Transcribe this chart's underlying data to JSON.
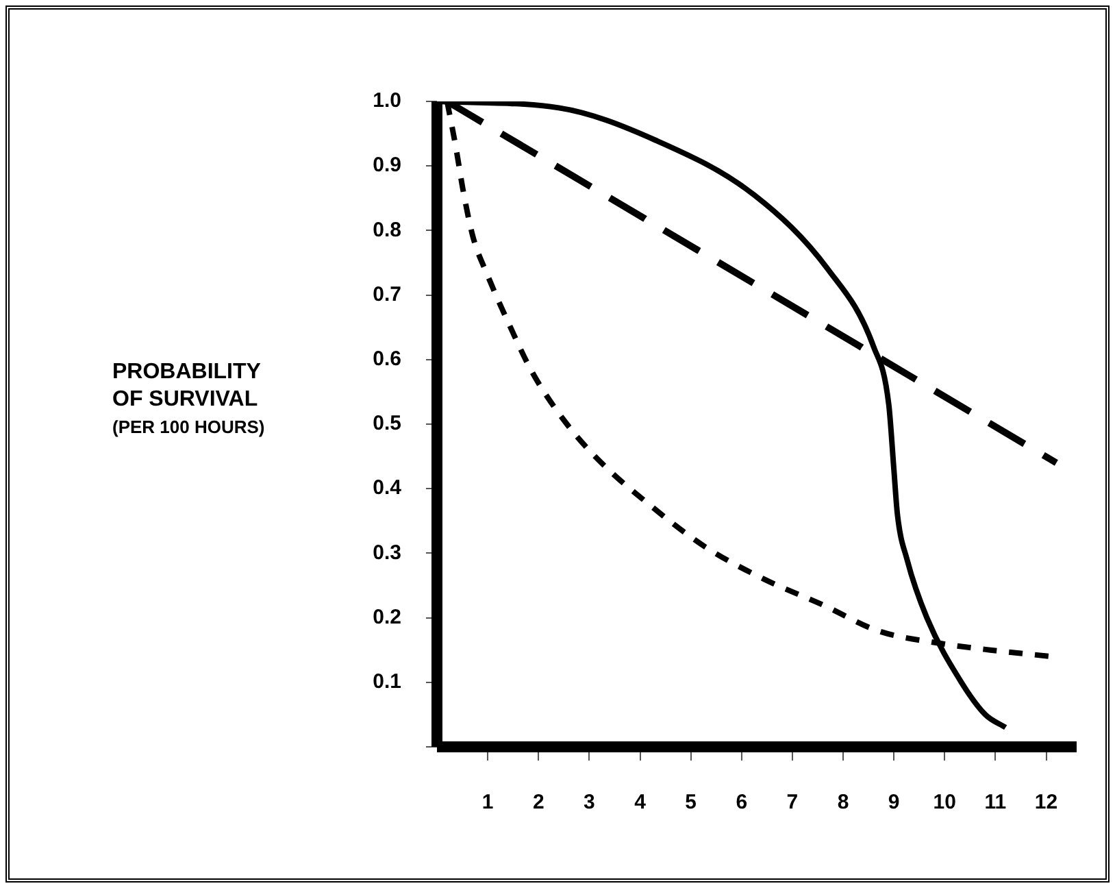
{
  "chart_data": {
    "type": "line",
    "ylabel": "PROBABILITY\nOF SURVIVAL\n(PER 100 HOURS)",
    "xlim": [
      0,
      12.6
    ],
    "ylim": [
      0,
      1.0
    ],
    "xticks": [
      1,
      2,
      3,
      4,
      5,
      6,
      7,
      8,
      9,
      10,
      11,
      12
    ],
    "yticks": [
      {
        "value": 0,
        "label": null
      },
      0.1,
      0.2,
      0.3,
      0.4,
      0.5,
      0.6,
      0.7,
      0.8,
      0.9,
      "1.0"
    ],
    "grid": false,
    "legend": false,
    "marker": "none",
    "series": [
      {
        "color": "#000000",
        "line_style": "solid",
        "x": [
          0,
          2.4,
          4.3,
          6.25,
          7.7,
          8.6,
          8.9,
          9.0,
          9.07,
          9.26,
          9.65,
          10.33,
          10.8,
          11.2
        ],
        "values": [
          1.0,
          0.99,
          0.94,
          0.855,
          0.74,
          0.62,
          0.53,
          0.43,
          0.36,
          0.29,
          0.2,
          0.1,
          0.05,
          0.03
        ]
      },
      {
        "color": "#000000",
        "line_style": "dashed",
        "x": [
          0.2,
          12.2
        ],
        "values": [
          1.0,
          0.44
        ]
      },
      {
        "color": "#000000",
        "line_style": "dotted",
        "x": [
          0.2,
          0.37,
          0.52,
          0.71,
          1.0,
          1.39,
          1.88,
          2.56,
          3.24,
          4.11,
          5.28,
          6.44,
          7.6,
          8.68,
          9.94,
          10.9,
          12.1
        ],
        "values": [
          1.0,
          0.93,
          0.86,
          0.79,
          0.73,
          0.66,
          0.58,
          0.5,
          0.44,
          0.38,
          0.31,
          0.26,
          0.22,
          0.18,
          0.16,
          0.15,
          0.14
        ]
      }
    ]
  }
}
